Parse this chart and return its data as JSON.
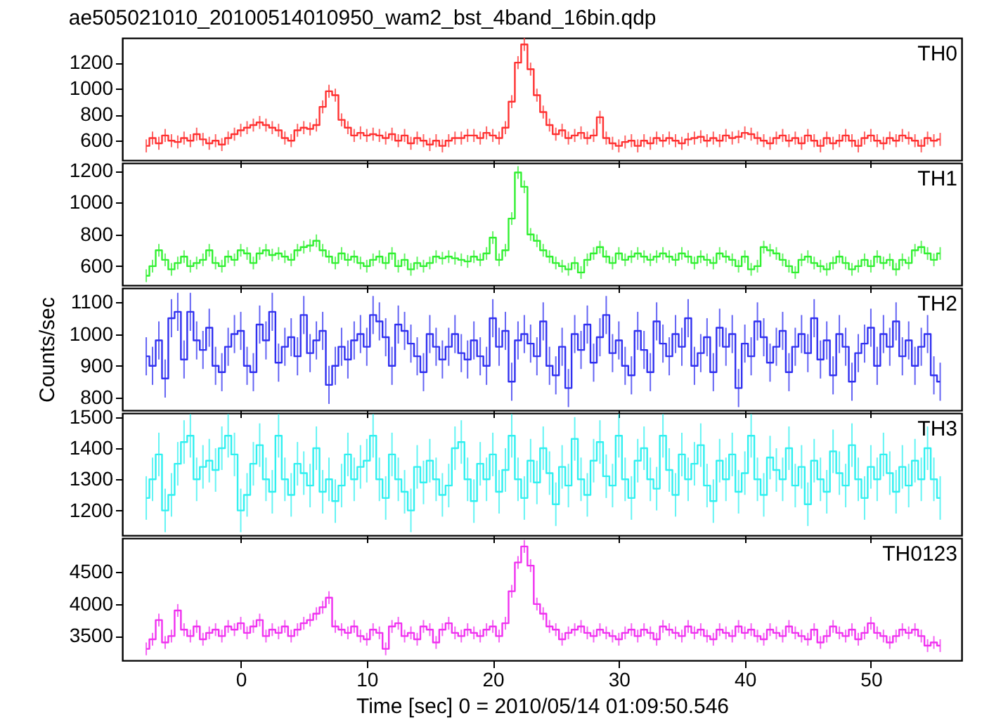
{
  "chart_data": [
    {
      "type": "step",
      "title": "ae505021010_20100514010950_wam2_bst_4band_16bin.qdp",
      "tick_labels": "y",
      "xlim": [
        -9.4,
        57.2
      ],
      "xticks": [
        0,
        10,
        20,
        30,
        40,
        50
      ],
      "ylim": [
        450,
        1390
      ],
      "yticks": [
        600,
        800,
        1000,
        1200
      ],
      "x": [
        -7.5,
        -7,
        -6.5,
        -6,
        -5.5,
        -5,
        -4.5,
        -4,
        -3.5,
        -3,
        -2.5,
        -2,
        -1.5,
        -1,
        -0.5,
        0,
        0.5,
        1,
        1.5,
        2,
        2.5,
        3,
        3.5,
        4,
        4.5,
        5,
        5.5,
        6,
        6.5,
        7,
        7.5,
        8,
        8.5,
        9,
        9.5,
        10,
        10.5,
        11,
        11.5,
        12,
        12.5,
        13,
        13.5,
        14,
        14.5,
        15,
        15.5,
        16,
        16.5,
        17,
        17.5,
        18,
        18.5,
        19,
        19.5,
        20,
        20.5,
        21,
        21.5,
        22,
        22.5,
        23,
        23.5,
        24,
        24.5,
        25,
        25.5,
        26,
        26.5,
        27,
        27.5,
        28,
        28.5,
        29,
        29.5,
        30,
        30.5,
        31,
        31.5,
        32,
        32.5,
        33,
        33.5,
        34,
        34.5,
        35,
        35.5,
        36,
        36.5,
        37,
        37.5,
        38,
        38.5,
        39,
        39.5,
        40,
        40.5,
        41,
        41.5,
        42,
        42.5,
        43,
        43.5,
        44,
        44.5,
        45,
        45.5,
        46,
        46.5,
        47,
        47.5,
        48,
        48.5,
        49,
        49.5,
        50,
        50.5,
        51,
        51.5,
        52,
        52.5,
        53,
        53.5,
        54,
        54.5,
        55,
        55.5
      ],
      "series": [
        {
          "name": "TH0",
          "color": "#ff3030",
          "values": [
            560,
            620,
            580,
            640,
            600,
            590,
            620,
            600,
            650,
            610,
            580,
            600,
            570,
            620,
            650,
            680,
            700,
            720,
            740,
            720,
            700,
            680,
            620,
            600,
            680,
            700,
            690,
            720,
            860,
            980,
            950,
            760,
            700,
            640,
            660,
            640,
            650,
            640,
            620,
            650,
            600,
            640,
            580,
            620,
            600,
            570,
            600,
            560,
            600,
            620,
            620,
            640,
            640,
            620,
            660,
            640,
            620,
            700,
            900,
            1200,
            1340,
            1150,
            950,
            820,
            720,
            650,
            680,
            620,
            640,
            660,
            620,
            640,
            780,
            620,
            580,
            560,
            590,
            600,
            560,
            600,
            580,
            620,
            600,
            620,
            600,
            580,
            610,
            620,
            630,
            600,
            620,
            600,
            640,
            620,
            630,
            660,
            650,
            620,
            600,
            580,
            620,
            640,
            600,
            620,
            580,
            640,
            600,
            560,
            620,
            580,
            600,
            640,
            600,
            560,
            620,
            640,
            600,
            580,
            620,
            600,
            640,
            620,
            600,
            560,
            620,
            600,
            610
          ],
          "errors": [
            50,
            50,
            50,
            50,
            50,
            50,
            50,
            50,
            50,
            50,
            50,
            50,
            50,
            50,
            50,
            50,
            50,
            50,
            50,
            50,
            50,
            50,
            50,
            50,
            50,
            50,
            50,
            50,
            50,
            50,
            50,
            50,
            50,
            50,
            50,
            50,
            50,
            50,
            50,
            50,
            50,
            50,
            50,
            50,
            50,
            50,
            50,
            50,
            50,
            50,
            50,
            50,
            50,
            50,
            50,
            50,
            50,
            50,
            50,
            50,
            50,
            50,
            50,
            50,
            50,
            50,
            50,
            50,
            50,
            50,
            50,
            50,
            50,
            50,
            50,
            50,
            50,
            50,
            50,
            50,
            50,
            50,
            50,
            50,
            50,
            50,
            50,
            50,
            50,
            50,
            50,
            50,
            50,
            50,
            50,
            50,
            50,
            50,
            50,
            50,
            50,
            50,
            50,
            50,
            50,
            50,
            50,
            50,
            50,
            50,
            50,
            50,
            50,
            50,
            50,
            50,
            50,
            50,
            50,
            50,
            50,
            50,
            50,
            50,
            50,
            50,
            50
          ]
        }
      ]
    },
    {
      "type": "step",
      "tick_labels": "y",
      "xlim": [
        -9.4,
        57.2
      ],
      "xticks": [
        0,
        10,
        20,
        30,
        40,
        50
      ],
      "ylim": [
        480,
        1250
      ],
      "yticks": [
        600,
        800,
        1000,
        1200
      ],
      "x": [
        -7.5,
        -7,
        -6.5,
        -6,
        -5.5,
        -5,
        -4.5,
        -4,
        -3.5,
        -3,
        -2.5,
        -2,
        -1.5,
        -1,
        -0.5,
        0,
        0.5,
        1,
        1.5,
        2,
        2.5,
        3,
        3.5,
        4,
        4.5,
        5,
        5.5,
        6,
        6.5,
        7,
        7.5,
        8,
        8.5,
        9,
        9.5,
        10,
        10.5,
        11,
        11.5,
        12,
        12.5,
        13,
        13.5,
        14,
        14.5,
        15,
        15.5,
        16,
        16.5,
        17,
        17.5,
        18,
        18.5,
        19,
        19.5,
        20,
        20.5,
        21,
        21.5,
        22,
        22.5,
        23,
        23.5,
        24,
        24.5,
        25,
        25.5,
        26,
        26.5,
        27,
        27.5,
        28,
        28.5,
        29,
        29.5,
        30,
        30.5,
        31,
        31.5,
        32,
        32.5,
        33,
        33.5,
        34,
        34.5,
        35,
        35.5,
        36,
        36.5,
        37,
        37.5,
        38,
        38.5,
        39,
        39.5,
        40,
        40.5,
        41,
        41.5,
        42,
        42.5,
        43,
        43.5,
        44,
        44.5,
        45,
        45.5,
        46,
        46.5,
        47,
        47.5,
        48,
        48.5,
        49,
        49.5,
        50,
        50.5,
        51,
        51.5,
        52,
        52.5,
        53,
        53.5,
        54,
        54.5,
        55,
        55.5
      ],
      "series": [
        {
          "name": "TH1",
          "color": "#30f030",
          "values": [
            540,
            600,
            700,
            640,
            580,
            620,
            660,
            600,
            620,
            640,
            700,
            620,
            600,
            660,
            640,
            700,
            680,
            620,
            680,
            700,
            670,
            680,
            660,
            640,
            700,
            720,
            730,
            760,
            700,
            660,
            620,
            680,
            640,
            660,
            620,
            600,
            640,
            660,
            620,
            680,
            600,
            640,
            580,
            620,
            600,
            620,
            660,
            650,
            660,
            650,
            640,
            630,
            660,
            640,
            680,
            780,
            640,
            700,
            900,
            1190,
            1100,
            800,
            760,
            700,
            660,
            620,
            600,
            580,
            620,
            560,
            640,
            680,
            720,
            660,
            620,
            680,
            640,
            660,
            680,
            660,
            640,
            660,
            680,
            660,
            640,
            680,
            660,
            620,
            660,
            640,
            620,
            680,
            660,
            640,
            600,
            660,
            580,
            600,
            720,
            700,
            680,
            640,
            600,
            560,
            640,
            660,
            620,
            600,
            580,
            620,
            660,
            620,
            580,
            600,
            640,
            600,
            660,
            620,
            640,
            580,
            640,
            620,
            700,
            720,
            680,
            640,
            680
          ],
          "errors": [
            40,
            40,
            40,
            40,
            40,
            40,
            40,
            40,
            40,
            40,
            40,
            40,
            40,
            40,
            40,
            40,
            40,
            40,
            40,
            40,
            40,
            40,
            40,
            40,
            40,
            40,
            40,
            40,
            40,
            40,
            40,
            40,
            40,
            40,
            40,
            40,
            40,
            40,
            40,
            40,
            40,
            40,
            40,
            40,
            40,
            40,
            40,
            40,
            40,
            40,
            40,
            40,
            40,
            40,
            40,
            40,
            40,
            40,
            40,
            40,
            40,
            40,
            40,
            40,
            40,
            40,
            40,
            40,
            40,
            40,
            40,
            40,
            40,
            40,
            40,
            40,
            40,
            40,
            40,
            40,
            40,
            40,
            40,
            40,
            40,
            40,
            40,
            40,
            40,
            40,
            40,
            40,
            40,
            40,
            40,
            40,
            40,
            40,
            40,
            40,
            40,
            40,
            40,
            40,
            40,
            40,
            40,
            40,
            40,
            40,
            40,
            40,
            40,
            40,
            40,
            40,
            40,
            40,
            40,
            40,
            40,
            40,
            40,
            40,
            40,
            40,
            40
          ]
        }
      ]
    },
    {
      "type": "step",
      "tick_labels": "y",
      "ylabel": "Counts/sec",
      "xlim": [
        -9.4,
        57.2
      ],
      "xticks": [
        0,
        10,
        20,
        30,
        40,
        50
      ],
      "ylim": [
        760,
        1145
      ],
      "yticks": [
        800,
        900,
        1000,
        1100
      ],
      "x": [
        -7.5,
        -7,
        -6.5,
        -6,
        -5.5,
        -5,
        -4.5,
        -4,
        -3.5,
        -3,
        -2.5,
        -2,
        -1.5,
        -1,
        -0.5,
        0,
        0.5,
        1,
        1.5,
        2,
        2.5,
        3,
        3.5,
        4,
        4.5,
        5,
        5.5,
        6,
        6.5,
        7,
        7.5,
        8,
        8.5,
        9,
        9.5,
        10,
        10.5,
        11,
        11.5,
        12,
        12.5,
        13,
        13.5,
        14,
        14.5,
        15,
        15.5,
        16,
        16.5,
        17,
        17.5,
        18,
        18.5,
        19,
        19.5,
        20,
        20.5,
        21,
        21.5,
        22,
        22.5,
        23,
        23.5,
        24,
        24.5,
        25,
        25.5,
        26,
        26.5,
        27,
        27.5,
        28,
        28.5,
        29,
        29.5,
        30,
        30.5,
        31,
        31.5,
        32,
        32.5,
        33,
        33.5,
        34,
        34.5,
        35,
        35.5,
        36,
        36.5,
        37,
        37.5,
        38,
        38.5,
        39,
        39.5,
        40,
        40.5,
        41,
        41.5,
        42,
        42.5,
        43,
        43.5,
        44,
        44.5,
        45,
        45.5,
        46,
        46.5,
        47,
        47.5,
        48,
        48.5,
        49,
        49.5,
        50,
        50.5,
        51,
        51.5,
        52,
        52.5,
        53,
        53.5,
        54,
        54.5,
        55,
        55.5
      ],
      "series": [
        {
          "name": "TH2",
          "color": "#3030f0",
          "values": [
            930,
            900,
            980,
            860,
            1050,
            1070,
            920,
            1070,
            980,
            950,
            1020,
            900,
            880,
            960,
            1000,
            1010,
            900,
            880,
            1030,
            980,
            1070,
            910,
            960,
            990,
            930,
            1060,
            940,
            980,
            1010,
            840,
            900,
            960,
            920,
            980,
            1000,
            960,
            1060,
            1040,
            990,
            900,
            1030,
            1010,
            970,
            930,
            880,
            1000,
            960,
            920,
            960,
            1000,
            940,
            920,
            980,
            930,
            900,
            1050,
            960,
            1010,
            850,
            980,
            1000,
            970,
            930,
            1040,
            900,
            870,
            960,
            830,
            1000,
            950,
            1030,
            910,
            990,
            1060,
            940,
            980,
            900,
            870,
            1010,
            950,
            880,
            1040,
            970,
            930,
            1000,
            960,
            1050,
            900,
            940,
            990,
            880,
            1020,
            960,
            1000,
            830,
            970,
            930,
            1040,
            990,
            910,
            960,
            1010,
            880,
            960,
            1000,
            940,
            1050,
            920,
            980,
            870,
            1000,
            960,
            850,
            940,
            970,
            1020,
            900,
            1000,
            960,
            1040,
            930,
            980,
            900,
            960,
            1000,
            870,
            850
          ],
          "errors": [
            60,
            60,
            60,
            60,
            60,
            60,
            60,
            60,
            60,
            60,
            60,
            60,
            60,
            60,
            60,
            60,
            60,
            60,
            60,
            60,
            60,
            60,
            60,
            60,
            60,
            60,
            60,
            60,
            60,
            60,
            60,
            60,
            60,
            60,
            60,
            60,
            60,
            60,
            60,
            60,
            60,
            60,
            60,
            60,
            60,
            60,
            60,
            60,
            60,
            60,
            60,
            60,
            60,
            60,
            60,
            60,
            60,
            60,
            60,
            60,
            60,
            60,
            60,
            60,
            60,
            60,
            60,
            60,
            60,
            60,
            60,
            60,
            60,
            60,
            60,
            60,
            60,
            60,
            60,
            60,
            60,
            60,
            60,
            60,
            60,
            60,
            60,
            60,
            60,
            60,
            60,
            60,
            60,
            60,
            60,
            60,
            60,
            60,
            60,
            60,
            60,
            60,
            60,
            60,
            60,
            60,
            60,
            60,
            60,
            60,
            60,
            60,
            60,
            60,
            60,
            60,
            60,
            60,
            60,
            60,
            60,
            60,
            60,
            60,
            60,
            60,
            60
          ]
        }
      ]
    },
    {
      "type": "step",
      "tick_labels": "y",
      "xlim": [
        -9.4,
        57.2
      ],
      "xticks": [
        0,
        10,
        20,
        30,
        40,
        50
      ],
      "ylim": [
        1120,
        1513
      ],
      "yticks": [
        1200,
        1300,
        1400,
        1500
      ],
      "x": [
        -7.5,
        -7,
        -6.5,
        -6,
        -5.5,
        -5,
        -4.5,
        -4,
        -3.5,
        -3,
        -2.5,
        -2,
        -1.5,
        -1,
        -0.5,
        0,
        0.5,
        1,
        1.5,
        2,
        2.5,
        3,
        3.5,
        4,
        4.5,
        5,
        5.5,
        6,
        6.5,
        7,
        7.5,
        8,
        8.5,
        9,
        9.5,
        10,
        10.5,
        11,
        11.5,
        12,
        12.5,
        13,
        13.5,
        14,
        14.5,
        15,
        15.5,
        16,
        16.5,
        17,
        17.5,
        18,
        18.5,
        19,
        19.5,
        20,
        20.5,
        21,
        21.5,
        22,
        22.5,
        23,
        23.5,
        24,
        24.5,
        25,
        25.5,
        26,
        26.5,
        27,
        27.5,
        28,
        28.5,
        29,
        29.5,
        30,
        30.5,
        31,
        31.5,
        32,
        32.5,
        33,
        33.5,
        34,
        34.5,
        35,
        35.5,
        36,
        36.5,
        37,
        37.5,
        38,
        38.5,
        39,
        39.5,
        40,
        40.5,
        41,
        41.5,
        42,
        42.5,
        43,
        43.5,
        44,
        44.5,
        45,
        45.5,
        46,
        46.5,
        47,
        47.5,
        48,
        48.5,
        49,
        49.5,
        50,
        50.5,
        51,
        51.5,
        52,
        52.5,
        53,
        53.5,
        54,
        54.5,
        55,
        55.5
      ],
      "series": [
        {
          "name": "TH3",
          "color": "#30f0f0",
          "values": [
            1240,
            1300,
            1380,
            1200,
            1250,
            1350,
            1420,
            1440,
            1300,
            1340,
            1360,
            1330,
            1400,
            1440,
            1380,
            1200,
            1250,
            1350,
            1410,
            1300,
            1260,
            1440,
            1300,
            1250,
            1350,
            1320,
            1280,
            1400,
            1260,
            1300,
            1230,
            1280,
            1380,
            1300,
            1340,
            1360,
            1440,
            1300,
            1240,
            1380,
            1300,
            1260,
            1200,
            1340,
            1290,
            1360,
            1300,
            1250,
            1280,
            1400,
            1420,
            1300,
            1230,
            1350,
            1300,
            1380,
            1260,
            1330,
            1440,
            1300,
            1240,
            1360,
            1290,
            1400,
            1320,
            1220,
            1340,
            1280,
            1430,
            1300,
            1250,
            1360,
            1420,
            1310,
            1280,
            1440,
            1300,
            1240,
            1360,
            1400,
            1300,
            1270,
            1440,
            1330,
            1250,
            1380,
            1300,
            1350,
            1410,
            1280,
            1230,
            1360,
            1300,
            1380,
            1260,
            1320,
            1440,
            1300,
            1250,
            1370,
            1330,
            1300,
            1400,
            1280,
            1340,
            1220,
            1360,
            1300,
            1260,
            1390,
            1320,
            1280,
            1410,
            1300,
            1240,
            1340,
            1300,
            1380,
            1320,
            1260,
            1340,
            1280,
            1360,
            1300,
            1400,
            1300,
            1240
          ],
          "errors": [
            70,
            70,
            70,
            70,
            70,
            70,
            70,
            70,
            70,
            70,
            70,
            70,
            70,
            70,
            70,
            70,
            70,
            70,
            70,
            70,
            70,
            70,
            70,
            70,
            70,
            70,
            70,
            70,
            70,
            70,
            70,
            70,
            70,
            70,
            70,
            70,
            70,
            70,
            70,
            70,
            70,
            70,
            70,
            70,
            70,
            70,
            70,
            70,
            70,
            70,
            70,
            70,
            70,
            70,
            70,
            70,
            70,
            70,
            70,
            70,
            70,
            70,
            70,
            70,
            70,
            70,
            70,
            70,
            70,
            70,
            70,
            70,
            70,
            70,
            70,
            70,
            70,
            70,
            70,
            70,
            70,
            70,
            70,
            70,
            70,
            70,
            70,
            70,
            70,
            70,
            70,
            70,
            70,
            70,
            70,
            70,
            70,
            70,
            70,
            70,
            70,
            70,
            70,
            70,
            70,
            70,
            70,
            70,
            70,
            70,
            70,
            70,
            70,
            70,
            70,
            70,
            70,
            70,
            70,
            70,
            70,
            70,
            70,
            70,
            70,
            70,
            70
          ]
        }
      ]
    },
    {
      "type": "step",
      "xlabel": "Time [sec] 0 = 2010/05/14 01:09:50.546",
      "xlim": [
        -9.4,
        57.2
      ],
      "xticks": [
        0,
        10,
        20,
        30,
        40,
        50
      ],
      "ylim": [
        3120,
        5030
      ],
      "yticks": [
        3500,
        4000,
        4500
      ],
      "x": [
        -7.5,
        -7,
        -6.5,
        -6,
        -5.5,
        -5,
        -4.5,
        -4,
        -3.5,
        -3,
        -2.5,
        -2,
        -1.5,
        -1,
        -0.5,
        0,
        0.5,
        1,
        1.5,
        2,
        2.5,
        3,
        3.5,
        4,
        4.5,
        5,
        5.5,
        6,
        6.5,
        7,
        7.5,
        8,
        8.5,
        9,
        9.5,
        10,
        10.5,
        11,
        11.5,
        12,
        12.5,
        13,
        13.5,
        14,
        14.5,
        15,
        15.5,
        16,
        16.5,
        17,
        17.5,
        18,
        18.5,
        19,
        19.5,
        20,
        20.5,
        21,
        21.5,
        22,
        22.5,
        23,
        23.5,
        24,
        24.5,
        25,
        25.5,
        26,
        26.5,
        27,
        27.5,
        28,
        28.5,
        29,
        29.5,
        30,
        30.5,
        31,
        31.5,
        32,
        32.5,
        33,
        33.5,
        34,
        34.5,
        35,
        35.5,
        36,
        36.5,
        37,
        37.5,
        38,
        38.5,
        39,
        39.5,
        40,
        40.5,
        41,
        41.5,
        42,
        42.5,
        43,
        43.5,
        44,
        44.5,
        45,
        45.5,
        46,
        46.5,
        47,
        47.5,
        48,
        48.5,
        49,
        49.5,
        50,
        50.5,
        51,
        51.5,
        52,
        52.5,
        53,
        53.5,
        54,
        54.5,
        55,
        55.5
      ],
      "series": [
        {
          "name": "TH0123",
          "color": "#f030f0",
          "values": [
            3300,
            3450,
            3750,
            3400,
            3500,
            3900,
            3600,
            3500,
            3650,
            3450,
            3550,
            3600,
            3500,
            3650,
            3600,
            3700,
            3550,
            3650,
            3750,
            3500,
            3600,
            3550,
            3650,
            3500,
            3600,
            3700,
            3750,
            3850,
            3950,
            4100,
            3650,
            3600,
            3550,
            3650,
            3500,
            3450,
            3600,
            3550,
            3300,
            3650,
            3700,
            3500,
            3550,
            3450,
            3650,
            3600,
            3400,
            3600,
            3700,
            3550,
            3500,
            3600,
            3550,
            3500,
            3600,
            3650,
            3500,
            3700,
            4200,
            4650,
            4900,
            4600,
            4000,
            3850,
            3650,
            3600,
            3450,
            3550,
            3600,
            3650,
            3550,
            3500,
            3600,
            3550,
            3500,
            3450,
            3550,
            3600,
            3500,
            3600,
            3550,
            3450,
            3650,
            3600,
            3550,
            3500,
            3650,
            3550,
            3600,
            3500,
            3450,
            3600,
            3550,
            3500,
            3650,
            3550,
            3600,
            3500,
            3450,
            3600,
            3550,
            3500,
            3650,
            3550,
            3500,
            3450,
            3600,
            3400,
            3500,
            3650,
            3550,
            3500,
            3600,
            3450,
            3550,
            3700,
            3550,
            3500,
            3400,
            3500,
            3600,
            3550,
            3600,
            3500,
            3350,
            3400,
            3350
          ],
          "errors": [
            100,
            100,
            100,
            100,
            100,
            100,
            100,
            100,
            100,
            100,
            100,
            100,
            100,
            100,
            100,
            100,
            100,
            100,
            100,
            100,
            100,
            100,
            100,
            100,
            100,
            100,
            100,
            100,
            100,
            100,
            100,
            100,
            100,
            100,
            100,
            100,
            100,
            100,
            100,
            100,
            100,
            100,
            100,
            100,
            100,
            100,
            100,
            100,
            100,
            100,
            100,
            100,
            100,
            100,
            100,
            100,
            100,
            100,
            100,
            100,
            100,
            100,
            100,
            100,
            100,
            100,
            100,
            100,
            100,
            100,
            100,
            100,
            100,
            100,
            100,
            100,
            100,
            100,
            100,
            100,
            100,
            100,
            100,
            100,
            100,
            100,
            100,
            100,
            100,
            100,
            100,
            100,
            100,
            100,
            100,
            100,
            100,
            100,
            100,
            100,
            100,
            100,
            100,
            100,
            100,
            100,
            100,
            100,
            100,
            100,
            100,
            100,
            100,
            100,
            100,
            100,
            100,
            100,
            100,
            100,
            100,
            100,
            100,
            100,
            100,
            100,
            100
          ]
        }
      ]
    }
  ]
}
